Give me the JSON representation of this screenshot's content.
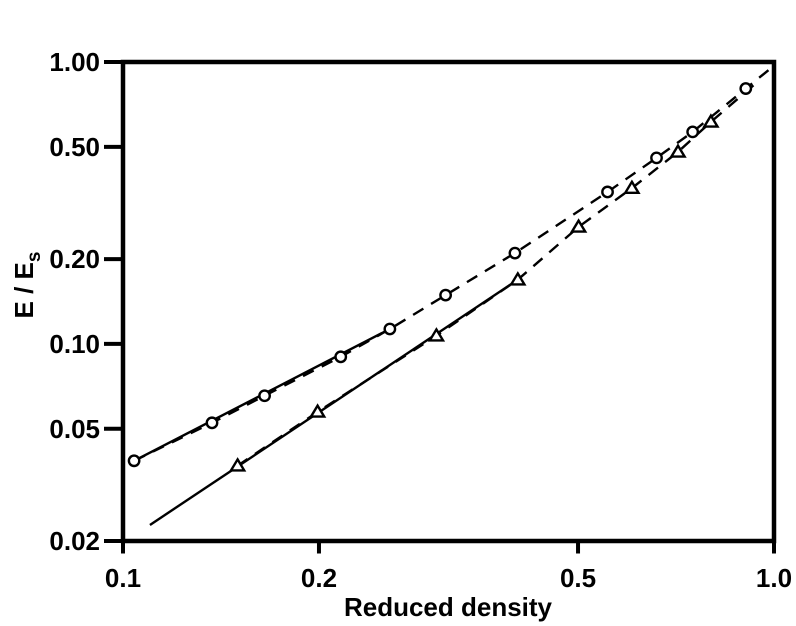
{
  "figure": {
    "background": "#ffffff",
    "ink": "#000000"
  },
  "chart_data": {
    "type": "scatter",
    "title": "",
    "xlabel": "Reduced density",
    "ylabel_main": "E / E",
    "ylabel_sub": "s",
    "log_x": true,
    "log_y": true,
    "xlim": [
      0.1,
      1.0
    ],
    "ylim": [
      0.02,
      1.0
    ],
    "grid": false,
    "legend": "none",
    "x_ticks": [
      {
        "value": 0.1,
        "label": "0.1"
      },
      {
        "value": 0.2,
        "label": "0.2"
      },
      {
        "value": 0.5,
        "label": "0.5"
      },
      {
        "value": 1.0,
        "label": "1.0"
      }
    ],
    "y_ticks": [
      {
        "value": 1.0,
        "label": "1.00"
      },
      {
        "value": 0.5,
        "label": "0.50"
      },
      {
        "value": 0.2,
        "label": "0.20"
      },
      {
        "value": 0.1,
        "label": "0.10"
      },
      {
        "value": 0.05,
        "label": "0.05"
      },
      {
        "value": 0.02,
        "label": "0.02"
      }
    ],
    "series": [
      {
        "name": "circle-series",
        "marker": "circle",
        "line_style": "dashed",
        "points": [
          [
            0.104,
            0.0385
          ],
          [
            0.137,
            0.0525
          ],
          [
            0.165,
            0.0655
          ],
          [
            0.216,
            0.09
          ],
          [
            0.257,
            0.113
          ],
          [
            0.313,
            0.149
          ],
          [
            0.4,
            0.21
          ],
          [
            0.555,
            0.346
          ],
          [
            0.66,
            0.457
          ],
          [
            0.75,
            0.565
          ],
          [
            0.905,
            0.805
          ]
        ],
        "extension": [
          1.005,
          0.98
        ]
      },
      {
        "name": "triangle-series",
        "marker": "triangle-up",
        "line_style": "dashed",
        "points": [
          [
            0.15,
            0.037
          ],
          [
            0.199,
            0.0574
          ],
          [
            0.303,
            0.107
          ],
          [
            0.404,
            0.169
          ],
          [
            0.501,
            0.26
          ],
          [
            0.605,
            0.357
          ],
          [
            0.712,
            0.48
          ],
          [
            0.8,
            0.613
          ]
        ],
        "extension": [
          0.95,
          0.862
        ]
      }
    ],
    "fit_lines": [
      {
        "name": "circle-fit-line",
        "style": "solid",
        "from": [
          0.104,
          0.0385
        ],
        "to": [
          0.257,
          0.113
        ]
      },
      {
        "name": "triangle-fit-line",
        "style": "solid",
        "from": [
          0.11,
          0.0228
        ],
        "to": [
          0.404,
          0.169
        ]
      }
    ]
  }
}
